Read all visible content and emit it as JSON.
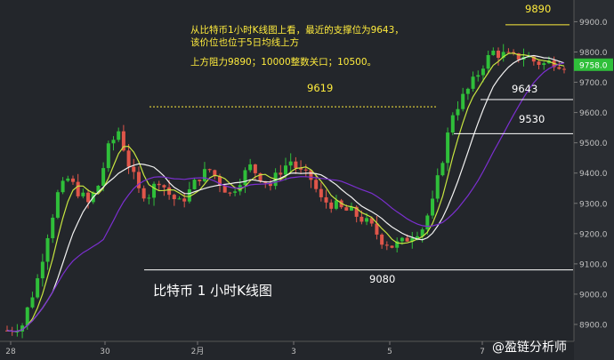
{
  "chart_data": {
    "type": "candlestick",
    "title": "比特币 1 小时K线图",
    "annotation_lines": [
      "从比特币1小时K线图上看，最近的支撑位为9643，",
      "该价位也位于5日均线上方",
      "上方阻力9890；10000整数关口；10500。"
    ],
    "x_tick_labels": [
      "28",
      "30",
      "2月",
      "3",
      "5",
      "7"
    ],
    "y_axis": {
      "range": [
        8850,
        9960
      ],
      "ticks": [
        8900,
        9000,
        9100,
        9200,
        9300,
        9400,
        9500,
        9600,
        9700,
        9800,
        9900
      ],
      "tick_labels": [
        "8900.0",
        "9000.0",
        "9100.0",
        "9200.0",
        "9300.0",
        "9400.0",
        "9500.0",
        "9600.0",
        "9700.0",
        "9800.0",
        "9900.0"
      ]
    },
    "current_price": {
      "value": 9758,
      "label": "9758.0",
      "color": "#2fbf3a"
    },
    "levels": [
      {
        "value": 9890,
        "label": "9890",
        "color": "#ffec3d",
        "style": "solid"
      },
      {
        "value": 9643,
        "label": "9643",
        "color": "#ffffff",
        "style": "solid"
      },
      {
        "value": 9619,
        "label": "9619",
        "color": "#ffec3d",
        "style": "dotted"
      },
      {
        "value": 9530,
        "label": "9530",
        "color": "#ffffff",
        "style": "solid"
      },
      {
        "value": 9080,
        "label": "9080",
        "color": "#ffffff",
        "style": "solid"
      }
    ],
    "price_path": [
      [
        0,
        8880
      ],
      [
        3,
        8900
      ],
      [
        6,
        9050
      ],
      [
        8,
        9200
      ],
      [
        10,
        9330
      ],
      [
        12,
        9380
      ],
      [
        14,
        9340
      ],
      [
        16,
        9300
      ],
      [
        18,
        9360
      ],
      [
        20,
        9480
      ],
      [
        22,
        9540
      ],
      [
        24,
        9430
      ],
      [
        26,
        9340
      ],
      [
        28,
        9330
      ],
      [
        30,
        9380
      ],
      [
        32,
        9330
      ],
      [
        34,
        9300
      ],
      [
        36,
        9340
      ],
      [
        38,
        9390
      ],
      [
        40,
        9410
      ],
      [
        42,
        9370
      ],
      [
        44,
        9330
      ],
      [
        46,
        9380
      ],
      [
        48,
        9420
      ],
      [
        50,
        9390
      ],
      [
        52,
        9360
      ],
      [
        54,
        9410
      ],
      [
        56,
        9440
      ],
      [
        58,
        9400
      ],
      [
        60,
        9380
      ],
      [
        62,
        9310
      ],
      [
        64,
        9300
      ],
      [
        66,
        9280
      ],
      [
        68,
        9270
      ],
      [
        70,
        9250
      ],
      [
        72,
        9220
      ],
      [
        74,
        9180
      ],
      [
        76,
        9160
      ],
      [
        78,
        9170
      ],
      [
        80,
        9200
      ],
      [
        82,
        9220
      ],
      [
        84,
        9300
      ],
      [
        86,
        9450
      ],
      [
        88,
        9600
      ],
      [
        90,
        9650
      ],
      [
        92,
        9700
      ],
      [
        94,
        9760
      ],
      [
        96,
        9800
      ],
      [
        98,
        9790
      ],
      [
        100,
        9780
      ],
      [
        102,
        9790
      ],
      [
        104,
        9770
      ],
      [
        106,
        9760
      ],
      [
        108,
        9770
      ],
      [
        110,
        9758
      ]
    ],
    "series_colors": {
      "up": "#2fbf3a",
      "down": "#e0564a",
      "ma_white": "#f2f2f2",
      "ma_yellow": "#c8e640",
      "ma_purple": "#7b2fd0"
    },
    "grid": false
  },
  "watermark": "@盈链分析师"
}
